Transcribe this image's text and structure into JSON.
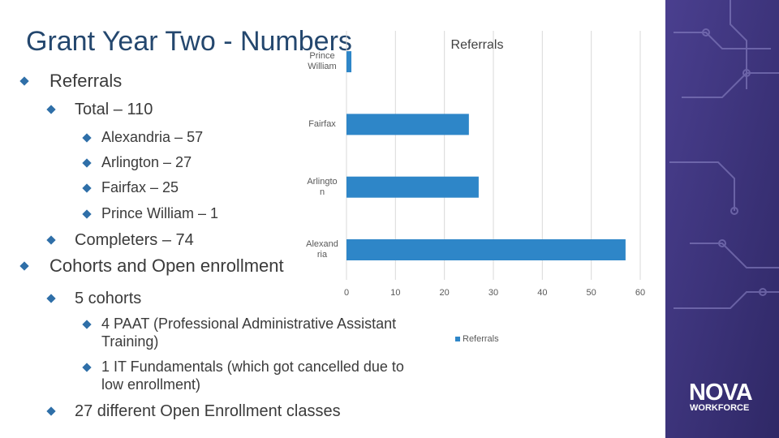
{
  "title": "Grant Year Two - Numbers",
  "bullets": [
    {
      "text": "Referrals",
      "children": [
        {
          "text": "Total – 110",
          "children": [
            {
              "text": "Alexandria – 57"
            },
            {
              "text": "Arlington – 27"
            },
            {
              "text": "Fairfax – 25"
            },
            {
              "text": "Prince William – 1"
            }
          ]
        },
        {
          "text": "Completers – 74"
        }
      ]
    },
    {
      "text": "Cohorts and Open enrollment",
      "children": [
        {
          "text": "5 cohorts",
          "children": [
            {
              "text": "4 PAAT (Professional Administrative Assistant Training)"
            },
            {
              "text": "1 IT Fundamentals (which got cancelled due to low enrollment)"
            }
          ]
        },
        {
          "text": "27 different Open Enrollment classes"
        }
      ]
    }
  ],
  "logo": {
    "line1": "NOVA",
    "line2": "WORKFORCE"
  },
  "chart_data": {
    "type": "bar",
    "orientation": "horizontal",
    "title": "Referrals",
    "categories": [
      "Alexandria",
      "Arlington",
      "Fairfax",
      "Prince William"
    ],
    "series": [
      {
        "name": "Referrals",
        "color": "#2e86c8",
        "values": [
          57,
          27,
          25,
          1
        ]
      }
    ],
    "xlim": [
      0,
      60
    ],
    "xticks": [
      0,
      10,
      20,
      30,
      40,
      50,
      60
    ],
    "grid": true,
    "legend": "bottom"
  }
}
